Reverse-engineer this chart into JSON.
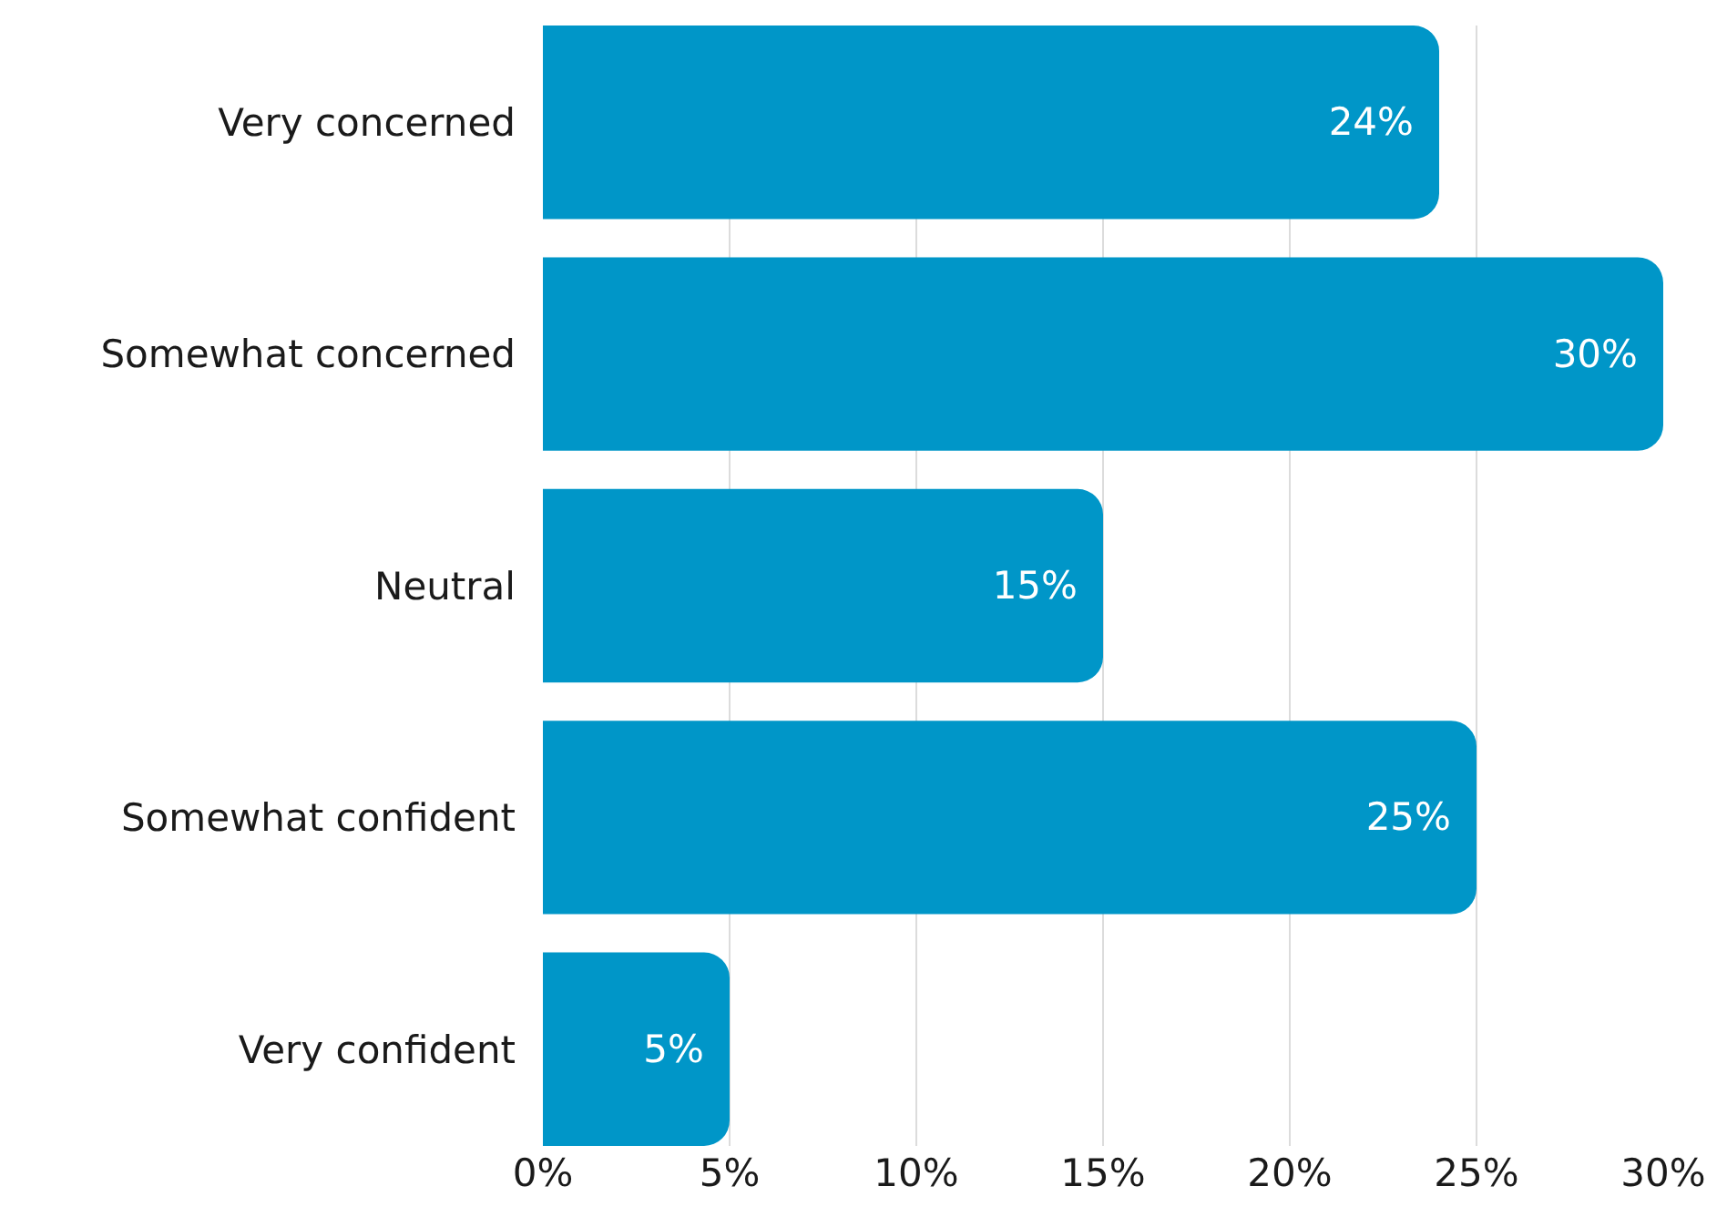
{
  "chart_data": {
    "type": "bar",
    "orientation": "horizontal",
    "categories": [
      "Very concerned",
      "Somewhat concerned",
      "Neutral",
      "Somewhat confident",
      "Very confident"
    ],
    "values": [
      24,
      30,
      15,
      25,
      5
    ],
    "value_labels": [
      "24%",
      "30%",
      "15%",
      "25%",
      "5%"
    ],
    "color": "#0096c8",
    "xlim": [
      0,
      30
    ],
    "xticks": [
      {
        "value": 0,
        "label": "0%"
      },
      {
        "value": 5,
        "label": "5%"
      },
      {
        "value": 10,
        "label": "10%"
      },
      {
        "value": 15,
        "label": "15%"
      },
      {
        "value": 20,
        "label": "20%"
      },
      {
        "value": 25,
        "label": "25%"
      },
      {
        "value": 30,
        "label": "30%"
      }
    ],
    "grid": "x"
  }
}
